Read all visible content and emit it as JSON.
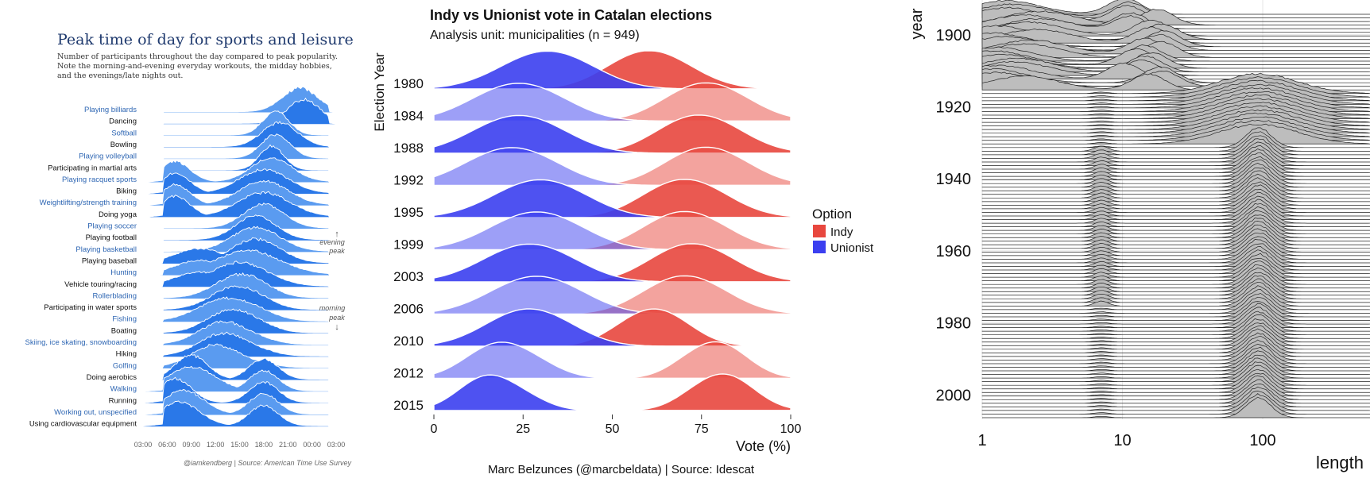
{
  "colors": {
    "sports_blue_light": "#5a9bf0",
    "sports_blue_dark": "#2a78e8",
    "sports_label_blue": "#2e66b3",
    "indy": "#e8473e",
    "unionist": "#3b3ff0",
    "grey_ridge": "#bdbdbd"
  },
  "sports": {
    "title": "Peak time of day for sports and leisure",
    "subtitle_lines": [
      "Number of participants throughout the day compared to peak popularity.",
      "Note the morning-and-evening everyday workouts, the midday hobbies,",
      "and the evenings/late nights out."
    ],
    "activities": [
      {
        "name": "Playing billiards",
        "peak_hour": 22.5,
        "spread": 2.2,
        "blue_label": true,
        "shape": "evening"
      },
      {
        "name": "Dancing",
        "peak_hour": 23.0,
        "spread": 2.0,
        "blue_label": false,
        "shape": "evening"
      },
      {
        "name": "Softball",
        "peak_hour": 19.5,
        "spread": 1.6,
        "blue_label": true,
        "shape": "evening"
      },
      {
        "name": "Bowling",
        "peak_hour": 20.0,
        "spread": 2.2,
        "blue_label": false,
        "shape": "evening"
      },
      {
        "name": "Playing volleyball",
        "peak_hour": 19.5,
        "spread": 1.8,
        "blue_label": true,
        "shape": "evening"
      },
      {
        "name": "Participating in martial arts",
        "peak_hour": 19.0,
        "spread": 1.5,
        "blue_label": false,
        "shape": "evening"
      },
      {
        "name": "Playing racquet sports",
        "peak_hour": 19.0,
        "spread": 2.5,
        "blue_label": true,
        "shape": "bimodal"
      },
      {
        "name": "Biking",
        "peak_hour": 18.0,
        "spread": 3.0,
        "blue_label": false,
        "shape": "bimodal"
      },
      {
        "name": "Weightlifting/strength training",
        "peak_hour": 18.0,
        "spread": 3.0,
        "blue_label": true,
        "shape": "bimodal"
      },
      {
        "name": "Doing yoga",
        "peak_hour": 18.0,
        "spread": 3.2,
        "blue_label": false,
        "shape": "bimodal"
      },
      {
        "name": "Playing soccer",
        "peak_hour": 18.0,
        "spread": 2.5,
        "blue_label": true,
        "shape": "evening"
      },
      {
        "name": "Playing football",
        "peak_hour": 17.0,
        "spread": 2.5,
        "blue_label": false,
        "shape": "evening"
      },
      {
        "name": "Playing basketball",
        "peak_hour": 17.0,
        "spread": 3.0,
        "blue_label": true,
        "shape": "evening"
      },
      {
        "name": "Playing baseball",
        "peak_hour": 17.0,
        "spread": 3.0,
        "blue_label": false,
        "shape": "wide"
      },
      {
        "name": "Hunting",
        "peak_hour": 16.0,
        "spread": 4.0,
        "blue_label": true,
        "shape": "wide"
      },
      {
        "name": "Vehicle touring/racing",
        "peak_hour": 15.0,
        "spread": 3.5,
        "blue_label": false,
        "shape": "wide"
      },
      {
        "name": "Rollerblading",
        "peak_hour": 15.0,
        "spread": 3.0,
        "blue_label": true,
        "shape": "midday"
      },
      {
        "name": "Participating in water sports",
        "peak_hour": 14.5,
        "spread": 3.0,
        "blue_label": false,
        "shape": "midday"
      },
      {
        "name": "Fishing",
        "peak_hour": 13.5,
        "spread": 3.5,
        "blue_label": true,
        "shape": "midday"
      },
      {
        "name": "Boating",
        "peak_hour": 14.0,
        "spread": 3.0,
        "blue_label": false,
        "shape": "midday"
      },
      {
        "name": "Skiing, ice skating, snowboarding",
        "peak_hour": 13.0,
        "spread": 3.0,
        "blue_label": true,
        "shape": "midday"
      },
      {
        "name": "Hiking",
        "peak_hour": 13.0,
        "spread": 3.0,
        "blue_label": false,
        "shape": "midday"
      },
      {
        "name": "Golfing",
        "peak_hour": 12.0,
        "spread": 3.0,
        "blue_label": true,
        "shape": "midday"
      },
      {
        "name": "Doing aerobics",
        "peak_hour": 9.0,
        "spread": 2.0,
        "blue_label": false,
        "shape": "bimodal"
      },
      {
        "name": "Walking",
        "peak_hour": 9.0,
        "spread": 3.0,
        "blue_label": true,
        "shape": "bimodal"
      },
      {
        "name": "Running",
        "peak_hour": 7.0,
        "spread": 2.0,
        "blue_label": false,
        "shape": "bimodal"
      },
      {
        "name": "Working out, unspecified",
        "peak_hour": 8.0,
        "spread": 2.5,
        "blue_label": true,
        "shape": "bimodal"
      },
      {
        "name": "Using cardiovascular equipment",
        "peak_hour": 7.5,
        "spread": 2.5,
        "blue_label": false,
        "shape": "bimodal"
      }
    ],
    "x_ticks": [
      "03:00",
      "06:00",
      "09:00",
      "12:00",
      "15:00",
      "18:00",
      "21:00",
      "00:00",
      "03:00"
    ],
    "annotation_evening": [
      "↑",
      "evening",
      "peak"
    ],
    "annotation_morning": [
      "morning",
      "peak",
      "↓"
    ],
    "credit": "@iamkendberg | Source: American Time Use Survey"
  },
  "catalan": {
    "title": "Indy vs Unionist vote in Catalan elections",
    "subtitle": "Analysis unit: municipalities (n = 949)",
    "y_label": "Election Year",
    "x_label": "Vote (%)",
    "x_ticks": [
      "0",
      "25",
      "50",
      "75",
      "100"
    ],
    "xlim": [
      0,
      100
    ],
    "legend_title": "Option",
    "legend": [
      "Indy",
      "Unionist"
    ],
    "caption": "Marc Belzunces (@marcbeldata) | Source: Idescat",
    "years": [
      {
        "year": "1980",
        "unionist_peak": 30,
        "unionist_sd": 12,
        "indy_peak": 62,
        "indy_sd": 11
      },
      {
        "year": "1984",
        "unionist_peak": 22,
        "unionist_sd": 12,
        "indy_peak": 78,
        "indy_sd": 11
      },
      {
        "year": "1988",
        "unionist_peak": 22,
        "unionist_sd": 12,
        "indy_peak": 76,
        "indy_sd": 11
      },
      {
        "year": "1992",
        "unionist_peak": 20,
        "unionist_sd": 12,
        "indy_peak": 78,
        "indy_sd": 11
      },
      {
        "year": "1995",
        "unionist_peak": 28,
        "unionist_sd": 12,
        "indy_peak": 72,
        "indy_sd": 11
      },
      {
        "year": "1999",
        "unionist_peak": 27,
        "unionist_sd": 12,
        "indy_peak": 72,
        "indy_sd": 11
      },
      {
        "year": "2003",
        "unionist_peak": 25,
        "unionist_sd": 12,
        "indy_peak": 74,
        "indy_sd": 11
      },
      {
        "year": "2006",
        "unionist_peak": 27,
        "unionist_sd": 12,
        "indy_peak": 72,
        "indy_sd": 11
      },
      {
        "year": "2010",
        "unionist_peak": 25,
        "unionist_sd": 11,
        "indy_peak": 63,
        "indy_sd": 9
      },
      {
        "year": "2012",
        "unionist_peak": 18,
        "unionist_sd": 9,
        "indy_peak": 80,
        "indy_sd": 8
      },
      {
        "year": "2015",
        "unionist_peak": 15,
        "unionist_sd": 8,
        "indy_peak": 82,
        "indy_sd": 8
      }
    ]
  },
  "movies": {
    "y_label": "year",
    "x_label": "length",
    "y_ticks": [
      "1900",
      "1920",
      "1940",
      "1960",
      "1980",
      "2000"
    ],
    "x_ticks": [
      "1",
      "10",
      "100"
    ],
    "x_scale": "log10",
    "year_range": [
      1893,
      2005
    ],
    "typical_length_minutes": 95
  }
}
